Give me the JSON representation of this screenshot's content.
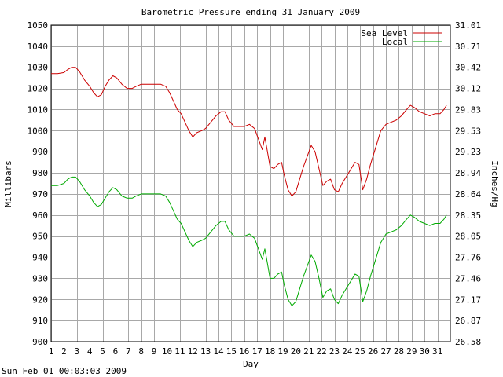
{
  "chart_data": {
    "type": "line",
    "title": "Barometric Pressure ending 31 January 2009",
    "xlabel": "Day",
    "ylabel": "Millibars",
    "y2label": "Inches/Hg",
    "xlim": [
      1,
      32
    ],
    "ylim": [
      900,
      1050
    ],
    "x_ticks": [
      "1",
      "2",
      "3",
      "4",
      "5",
      "6",
      "7",
      "8",
      "9",
      "10",
      "11",
      "12",
      "13",
      "14",
      "15",
      "16",
      "17",
      "18",
      "19",
      "20",
      "21",
      "22",
      "23",
      "24",
      "25",
      "26",
      "27",
      "28",
      "29",
      "30",
      "31"
    ],
    "y_ticks": [
      "900",
      "910",
      "920",
      "930",
      "940",
      "950",
      "960",
      "970",
      "980",
      "990",
      "1000",
      "1010",
      "1020",
      "1030",
      "1040",
      "1050"
    ],
    "y2_ticks": [
      "26.58",
      "26.87",
      "27.17",
      "27.46",
      "27.76",
      "28.05",
      "28.35",
      "28.64",
      "28.94",
      "29.23",
      "29.53",
      "29.83",
      "30.12",
      "30.42",
      "30.71",
      "31.01"
    ],
    "grid": true,
    "legend_position": "top-right",
    "series": [
      {
        "name": "Sea Level",
        "color": "#cc0000",
        "points": [
          [
            1.0,
            1027
          ],
          [
            1.5,
            1027
          ],
          [
            2.0,
            1027.5
          ],
          [
            2.3,
            1029
          ],
          [
            2.6,
            1030
          ],
          [
            2.9,
            1030
          ],
          [
            3.2,
            1028
          ],
          [
            3.6,
            1024
          ],
          [
            4.0,
            1021
          ],
          [
            4.3,
            1018
          ],
          [
            4.6,
            1016
          ],
          [
            4.9,
            1017
          ],
          [
            5.2,
            1021
          ],
          [
            5.5,
            1024
          ],
          [
            5.8,
            1026
          ],
          [
            6.1,
            1025
          ],
          [
            6.5,
            1022
          ],
          [
            6.9,
            1020
          ],
          [
            7.3,
            1020
          ],
          [
            7.6,
            1021
          ],
          [
            8.0,
            1022
          ],
          [
            8.5,
            1022
          ],
          [
            9.0,
            1022
          ],
          [
            9.5,
            1022
          ],
          [
            9.9,
            1021
          ],
          [
            10.2,
            1018
          ],
          [
            10.5,
            1014
          ],
          [
            10.8,
            1010
          ],
          [
            11.1,
            1008
          ],
          [
            11.4,
            1004
          ],
          [
            11.7,
            1000
          ],
          [
            12.0,
            997
          ],
          [
            12.3,
            999
          ],
          [
            12.7,
            1000
          ],
          [
            13.0,
            1001
          ],
          [
            13.4,
            1004
          ],
          [
            13.8,
            1007
          ],
          [
            14.2,
            1009
          ],
          [
            14.5,
            1009
          ],
          [
            14.8,
            1005
          ],
          [
            15.2,
            1002
          ],
          [
            15.6,
            1002
          ],
          [
            16.0,
            1002
          ],
          [
            16.4,
            1003
          ],
          [
            16.8,
            1001
          ],
          [
            17.1,
            996
          ],
          [
            17.4,
            991
          ],
          [
            17.6,
            997
          ],
          [
            17.8,
            990
          ],
          [
            18.0,
            983
          ],
          [
            18.3,
            982
          ],
          [
            18.6,
            984
          ],
          [
            18.9,
            985
          ],
          [
            19.1,
            979
          ],
          [
            19.4,
            972
          ],
          [
            19.7,
            969
          ],
          [
            20.0,
            971
          ],
          [
            20.3,
            977
          ],
          [
            20.6,
            983
          ],
          [
            20.9,
            988
          ],
          [
            21.2,
            993
          ],
          [
            21.5,
            990
          ],
          [
            21.8,
            982
          ],
          [
            22.1,
            974
          ],
          [
            22.4,
            976
          ],
          [
            22.7,
            977
          ],
          [
            23.0,
            972
          ],
          [
            23.3,
            971
          ],
          [
            23.6,
            975
          ],
          [
            24.0,
            979
          ],
          [
            24.3,
            982
          ],
          [
            24.6,
            985
          ],
          [
            24.9,
            984
          ],
          [
            25.2,
            972
          ],
          [
            25.5,
            977
          ],
          [
            25.8,
            984
          ],
          [
            26.2,
            992
          ],
          [
            26.6,
            1000
          ],
          [
            27.0,
            1003
          ],
          [
            27.4,
            1004
          ],
          [
            27.8,
            1005
          ],
          [
            28.2,
            1007
          ],
          [
            28.6,
            1010
          ],
          [
            28.9,
            1012
          ],
          [
            29.2,
            1011
          ],
          [
            29.6,
            1009
          ],
          [
            30.0,
            1008
          ],
          [
            30.4,
            1007
          ],
          [
            30.8,
            1008
          ],
          [
            31.2,
            1008
          ],
          [
            31.5,
            1010
          ],
          [
            31.7,
            1012
          ]
        ]
      },
      {
        "name": "Local",
        "color": "#00aa00",
        "points": [
          [
            1.0,
            974
          ],
          [
            1.5,
            974
          ],
          [
            2.0,
            975
          ],
          [
            2.3,
            977
          ],
          [
            2.6,
            978
          ],
          [
            2.9,
            978
          ],
          [
            3.2,
            976
          ],
          [
            3.6,
            972
          ],
          [
            4.0,
            969
          ],
          [
            4.3,
            966
          ],
          [
            4.6,
            964
          ],
          [
            4.9,
            965
          ],
          [
            5.2,
            968
          ],
          [
            5.5,
            971
          ],
          [
            5.8,
            973
          ],
          [
            6.1,
            972
          ],
          [
            6.5,
            969
          ],
          [
            6.9,
            968
          ],
          [
            7.3,
            968
          ],
          [
            7.6,
            969
          ],
          [
            8.0,
            970
          ],
          [
            8.5,
            970
          ],
          [
            9.0,
            970
          ],
          [
            9.5,
            970
          ],
          [
            9.9,
            969
          ],
          [
            10.2,
            966
          ],
          [
            10.5,
            962
          ],
          [
            10.8,
            958
          ],
          [
            11.1,
            956
          ],
          [
            11.4,
            952
          ],
          [
            11.7,
            948
          ],
          [
            12.0,
            945
          ],
          [
            12.3,
            947
          ],
          [
            12.7,
            948
          ],
          [
            13.0,
            949
          ],
          [
            13.4,
            952
          ],
          [
            13.8,
            955
          ],
          [
            14.2,
            957
          ],
          [
            14.5,
            957
          ],
          [
            14.8,
            953
          ],
          [
            15.2,
            950
          ],
          [
            15.6,
            950
          ],
          [
            16.0,
            950
          ],
          [
            16.4,
            951
          ],
          [
            16.8,
            949
          ],
          [
            17.1,
            944
          ],
          [
            17.4,
            939
          ],
          [
            17.6,
            944
          ],
          [
            17.8,
            937
          ],
          [
            18.0,
            930
          ],
          [
            18.3,
            930
          ],
          [
            18.6,
            932
          ],
          [
            18.9,
            933
          ],
          [
            19.1,
            927
          ],
          [
            19.4,
            920
          ],
          [
            19.7,
            917
          ],
          [
            20.0,
            919
          ],
          [
            20.3,
            925
          ],
          [
            20.6,
            931
          ],
          [
            20.9,
            936
          ],
          [
            21.2,
            941
          ],
          [
            21.5,
            938
          ],
          [
            21.8,
            930
          ],
          [
            22.1,
            921
          ],
          [
            22.4,
            924
          ],
          [
            22.7,
            925
          ],
          [
            23.0,
            920
          ],
          [
            23.3,
            918
          ],
          [
            23.6,
            922
          ],
          [
            24.0,
            926
          ],
          [
            24.3,
            929
          ],
          [
            24.6,
            932
          ],
          [
            24.9,
            931
          ],
          [
            25.2,
            919
          ],
          [
            25.5,
            924
          ],
          [
            25.8,
            931
          ],
          [
            26.2,
            939
          ],
          [
            26.6,
            947
          ],
          [
            27.0,
            951
          ],
          [
            27.4,
            952
          ],
          [
            27.8,
            953
          ],
          [
            28.2,
            955
          ],
          [
            28.6,
            958
          ],
          [
            28.9,
            960
          ],
          [
            29.2,
            959
          ],
          [
            29.6,
            957
          ],
          [
            30.0,
            956
          ],
          [
            30.4,
            955
          ],
          [
            30.8,
            956
          ],
          [
            31.2,
            956
          ],
          [
            31.5,
            958
          ],
          [
            31.7,
            960
          ]
        ]
      }
    ]
  },
  "footer": {
    "timestamp": "Sun Feb 01 00:03:03 2009"
  }
}
